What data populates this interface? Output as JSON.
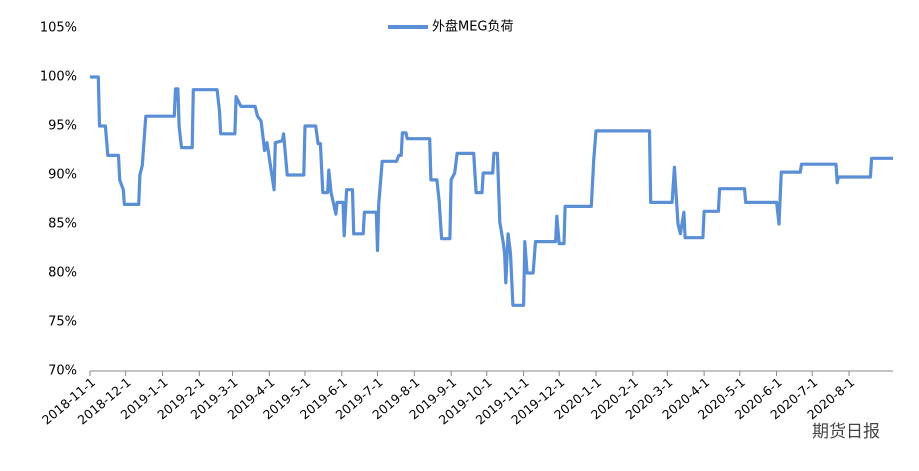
{
  "chart_data": {
    "type": "line",
    "x": [
      "2018-11-1",
      "2018-11-8",
      "2018-11-9",
      "2018-11-14",
      "2018-11-16",
      "2018-11-25",
      "2018-11-26",
      "2018-11-29",
      "2018-11-30",
      "2018-12-12",
      "2018-12-13",
      "2018-12-15",
      "2018-12-18",
      "2019-1-11",
      "2019-1-12",
      "2019-1-14",
      "2019-1-15",
      "2019-1-17",
      "2019-1-26",
      "2019-1-27",
      "2019-2-16",
      "2019-2-18",
      "2019-2-19",
      "2019-3-3",
      "2019-3-4",
      "2019-3-8",
      "2019-3-20",
      "2019-3-22",
      "2019-3-25",
      "2019-3-28",
      "2019-3-30",
      "2019-4-5",
      "2019-4-6",
      "2019-4-12",
      "2019-4-13",
      "2019-4-16",
      "2019-4-30",
      "2019-5-1",
      "2019-5-10",
      "2019-5-12",
      "2019-5-14",
      "2019-5-16",
      "2019-5-20",
      "2019-5-21",
      "2019-5-23",
      "2019-5-27",
      "2019-5-28",
      "2019-6-2",
      "2019-6-3",
      "2019-6-5",
      "2019-6-10",
      "2019-6-11",
      "2019-6-19",
      "2019-6-20",
      "2019-6-30",
      "2019-7-1",
      "2019-7-2",
      "2019-7-5",
      "2019-7-17",
      "2019-7-19",
      "2019-7-21",
      "2019-7-22",
      "2019-7-25",
      "2019-7-26",
      "2019-8-14",
      "2019-8-15",
      "2019-8-20",
      "2019-8-22",
      "2019-8-24",
      "2019-8-31",
      "2019-9-1",
      "2019-9-4",
      "2019-9-6",
      "2019-9-20",
      "2019-9-22",
      "2019-9-27",
      "2019-9-28",
      "2019-10-6",
      "2019-10-7",
      "2019-10-10",
      "2019-10-12",
      "2019-10-15",
      "2019-10-16",
      "2019-10-17",
      "2019-10-19",
      "2019-10-21",
      "2019-10-23",
      "2019-11-1",
      "2019-11-2",
      "2019-11-4",
      "2019-11-9",
      "2019-11-11",
      "2019-11-28",
      "2019-11-29",
      "2019-12-1",
      "2019-12-5",
      "2019-12-6",
      "2019-12-28",
      "2019-12-30",
      "2020-1-1",
      "2020-2-15",
      "2020-2-16",
      "2020-3-5",
      "2020-3-7",
      "2020-3-10",
      "2020-3-12",
      "2020-3-15",
      "2020-3-16",
      "2020-3-31",
      "2020-4-1",
      "2020-4-13",
      "2020-4-14",
      "2020-5-5",
      "2020-5-6",
      "2020-6-1",
      "2020-6-3",
      "2020-6-5",
      "2020-6-21",
      "2020-6-22",
      "2020-7-21",
      "2020-7-22",
      "2020-7-23",
      "2020-8-19",
      "2020-8-20",
      "2020-9-7"
    ],
    "series": [
      {
        "name": "外盘MEG负荷",
        "color": "#5a8fd5",
        "values": [
          100,
          100,
          95,
          95,
          92,
          92,
          89.5,
          88.5,
          87,
          87,
          90,
          91,
          96,
          96,
          98.8,
          98.8,
          95,
          92.8,
          92.8,
          98.7,
          98.7,
          96.5,
          94.2,
          94.2,
          98,
          97,
          97,
          96,
          95.5,
          92.5,
          93.3,
          88.5,
          93.3,
          93.5,
          94.2,
          90,
          90,
          95,
          95,
          93.2,
          93.2,
          88.2,
          88.2,
          90.5,
          88.2,
          86,
          87.2,
          87.2,
          83.8,
          88.5,
          88.5,
          84,
          84,
          86.2,
          86.2,
          82.3,
          87,
          91.4,
          91.4,
          92,
          92,
          94.3,
          94.3,
          93.7,
          93.7,
          89.5,
          89.5,
          87.3,
          83.5,
          83.5,
          89.5,
          90.2,
          92.2,
          92.2,
          88.2,
          88.2,
          90.2,
          90.2,
          92.2,
          92.2,
          85.2,
          83,
          82,
          79,
          84,
          82,
          76.7,
          76.7,
          83.2,
          80,
          80,
          83.2,
          83.2,
          85.8,
          83,
          83,
          86.8,
          86.8,
          91.5,
          94.5,
          94.5,
          87.2,
          87.2,
          90.8,
          85,
          84,
          86.2,
          83.6,
          83.6,
          86.3,
          86.3,
          88.6,
          88.6,
          87.2,
          87.2,
          85,
          90.3,
          90.3,
          91.1,
          91.1,
          89.2,
          89.8,
          89.8,
          91.7,
          91.7
        ]
      }
    ],
    "xlim": [
      "2018-11-1",
      "2020-9-7"
    ],
    "xticks": [
      "2018-11-1",
      "2018-12-1",
      "2019-1-1",
      "2019-2-1",
      "2019-3-1",
      "2019-4-1",
      "2019-5-1",
      "2019-6-1",
      "2019-7-1",
      "2019-8-1",
      "2019-9-1",
      "2019-10-1",
      "2019-11-1",
      "2019-12-1",
      "2020-1-1",
      "2020-2-1",
      "2020-3-1",
      "2020-4-1",
      "2020-5-1",
      "2020-6-1",
      "2020-7-1",
      "2020-8-1"
    ],
    "ylim": [
      70,
      105
    ],
    "yticks": [
      {
        "value": 70,
        "label": "70%"
      },
      {
        "value": 75,
        "label": "75%"
      },
      {
        "value": 80,
        "label": "80%"
      },
      {
        "value": 85,
        "label": "85%"
      },
      {
        "value": 90,
        "label": "90%"
      },
      {
        "value": 95,
        "label": "95%"
      },
      {
        "value": 100,
        "label": "100%"
      },
      {
        "value": 105,
        "label": "105%"
      }
    ],
    "legend": "top",
    "watermark": "期货日报"
  }
}
